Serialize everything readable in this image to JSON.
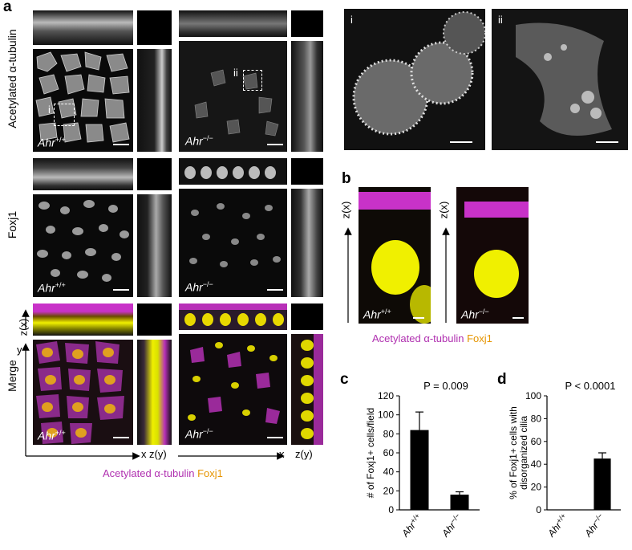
{
  "panels": {
    "a": {
      "letter": "a",
      "row_labels": [
        "Acetylated α-tubulin",
        "Foxj1",
        "Merge"
      ],
      "genotype_wt": "Ahr",
      "genotype_wt_sup": "+/+",
      "genotype_ko": "Ahr",
      "genotype_ko_sup": "−/−",
      "inset_i": "i",
      "inset_ii": "ii",
      "axis_zx": "z(x)",
      "axis_y": "y",
      "axis_x": "x",
      "axis_zy": "z(y)",
      "legend_tubulin": "Acetylated α-tubulin",
      "legend_foxj1": "Foxj1"
    },
    "zoom": {
      "label_i": "i",
      "label_ii": "ii"
    },
    "b": {
      "letter": "b",
      "axis_zx": "z(x)",
      "genotype_wt": "Ahr",
      "genotype_wt_sup": "+/+",
      "genotype_ko": "Ahr",
      "genotype_ko_sup": "−/−",
      "legend_tubulin": "Acetylated α-tubulin",
      "legend_foxj1": "Foxj1"
    },
    "c": {
      "letter": "c",
      "pvalue": "P = 0.009"
    },
    "d": {
      "letter": "d",
      "pvalue": "P < 0.0001"
    }
  },
  "colors": {
    "magenta": "#c832c8",
    "yellow": "#f0f000",
    "orange": "#e69500",
    "bar": "#000000"
  },
  "chart_data": [
    {
      "type": "bar",
      "panel": "c",
      "categories": [
        "Ahr+/+",
        "Ahr−/−"
      ],
      "values": [
        84,
        16
      ],
      "error": [
        19,
        3
      ],
      "ylabel": "# of Foxj1+ cells/field",
      "ylim": [
        0,
        120
      ],
      "yticks": [
        0,
        20,
        40,
        60,
        80,
        100,
        120
      ],
      "annotation": "P = 0.009"
    },
    {
      "type": "bar",
      "panel": "d",
      "categories": [
        "Ahr+/+",
        "Ahr−/−"
      ],
      "values": [
        0,
        45
      ],
      "error": [
        0,
        5
      ],
      "ylabel": "% of Foxj1+ cells with disorganized cilia",
      "ylim": [
        0,
        100
      ],
      "yticks": [
        0,
        20,
        40,
        60,
        80,
        100
      ],
      "annotation": "P < 0.0001"
    }
  ]
}
